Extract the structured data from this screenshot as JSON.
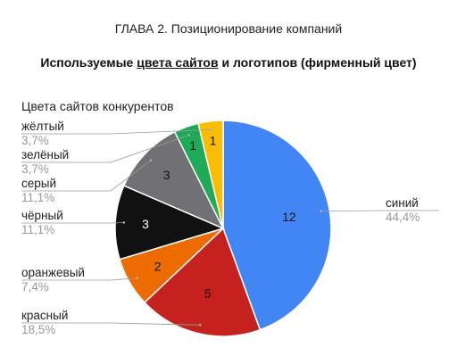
{
  "header": {
    "chapter_title": "ГЛАВА 2. Позиционирование компаний",
    "section_prefix": "Используемые ",
    "section_underlined": "цвета сайтов",
    "section_suffix": " и логотипов (фирменный цвет)"
  },
  "chart_data": {
    "type": "pie",
    "title": "Цвета сайтов конкурентов",
    "slices": [
      {
        "label": "синий",
        "value": 12,
        "percent": "44,4%",
        "color": "#4285f4"
      },
      {
        "label": "красный",
        "value": 5,
        "percent": "18,5%",
        "color": "#c5221f"
      },
      {
        "label": "оранжевый",
        "value": 2,
        "percent": "7,4%",
        "color": "#ed6c02"
      },
      {
        "label": "чёрный",
        "value": 3,
        "percent": "11,1%",
        "color": "#111111"
      },
      {
        "label": "серый",
        "value": 3,
        "percent": "11,1%",
        "color": "#707075"
      },
      {
        "label": "зелёный",
        "value": 1,
        "percent": "3,7%",
        "color": "#1faa59"
      },
      {
        "label": "жёлтый",
        "value": 1,
        "percent": "3,7%",
        "color": "#fbbc04"
      }
    ],
    "legend": "callout labels around pie"
  }
}
